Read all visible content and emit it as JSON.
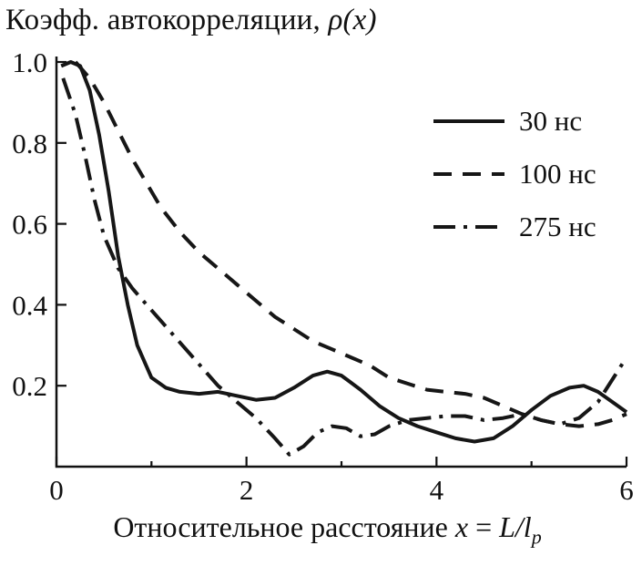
{
  "title": {
    "text": "Коэфф. автокорреляции, ",
    "math": "ρ(x)"
  },
  "xlabel": {
    "text": "Относительное расстояние ",
    "var": "x",
    "eq": " = ",
    "expr": "L/l",
    "sub": "p"
  },
  "chart_data": {
    "type": "line",
    "title": "Коэфф. автокорреляции, ρ(x)",
    "xlabel": "Относительное расстояние x = L/l_p",
    "ylabel": "",
    "xlim": [
      0,
      6
    ],
    "ylim": [
      0,
      1.0
    ],
    "grid": false,
    "legend_position": "top-right",
    "xticks": [
      {
        "v": 0,
        "label": "0"
      },
      {
        "v": 2,
        "label": "2"
      },
      {
        "v": 4,
        "label": "4"
      },
      {
        "v": 6,
        "label": "6"
      }
    ],
    "x_minor_ticks": [
      1,
      3,
      5
    ],
    "yticks": [
      {
        "v": 0.2,
        "label": "0.2"
      },
      {
        "v": 0.4,
        "label": "0.4"
      },
      {
        "v": 0.6,
        "label": "0.6"
      },
      {
        "v": 0.8,
        "label": "0.8"
      },
      {
        "v": 1.0,
        "label": "1.0"
      }
    ],
    "line_color": "#161616",
    "series": [
      {
        "name": "30 нс",
        "style": "solid",
        "x": [
          0.05,
          0.15,
          0.25,
          0.35,
          0.45,
          0.55,
          0.65,
          0.75,
          0.85,
          1.0,
          1.15,
          1.3,
          1.5,
          1.7,
          1.9,
          2.1,
          2.3,
          2.5,
          2.7,
          2.85,
          3.0,
          3.2,
          3.4,
          3.6,
          3.8,
          4.0,
          4.2,
          4.4,
          4.6,
          4.8,
          5.0,
          5.2,
          5.4,
          5.55,
          5.7,
          5.85,
          6.0
        ],
        "y": [
          0.99,
          1.0,
          0.99,
          0.93,
          0.82,
          0.68,
          0.52,
          0.4,
          0.3,
          0.22,
          0.195,
          0.185,
          0.18,
          0.185,
          0.175,
          0.165,
          0.17,
          0.195,
          0.225,
          0.235,
          0.225,
          0.19,
          0.15,
          0.12,
          0.1,
          0.085,
          0.07,
          0.062,
          0.07,
          0.1,
          0.14,
          0.175,
          0.195,
          0.2,
          0.185,
          0.16,
          0.135
        ]
      },
      {
        "name": "100 нс",
        "style": "dashed",
        "x": [
          0.2,
          0.35,
          0.5,
          0.65,
          0.8,
          0.95,
          1.1,
          1.3,
          1.5,
          1.7,
          1.9,
          2.1,
          2.3,
          2.5,
          2.7,
          2.9,
          3.1,
          3.3,
          3.5,
          3.7,
          3.9,
          4.1,
          4.3,
          4.5,
          4.7,
          4.9,
          5.1,
          5.3,
          5.5,
          5.7,
          5.85,
          6.0
        ],
        "y": [
          1.0,
          0.96,
          0.9,
          0.83,
          0.76,
          0.7,
          0.64,
          0.58,
          0.53,
          0.49,
          0.45,
          0.41,
          0.37,
          0.34,
          0.31,
          0.29,
          0.27,
          0.25,
          0.22,
          0.205,
          0.19,
          0.185,
          0.18,
          0.17,
          0.15,
          0.13,
          0.115,
          0.105,
          0.1,
          0.105,
          0.115,
          0.13
        ]
      },
      {
        "name": "275 нс",
        "style": "dashdot",
        "x": [
          0.07,
          0.2,
          0.3,
          0.4,
          0.5,
          0.65,
          0.8,
          0.95,
          1.1,
          1.25,
          1.4,
          1.55,
          1.7,
          1.9,
          2.1,
          2.3,
          2.45,
          2.6,
          2.75,
          2.9,
          3.05,
          3.2,
          3.35,
          3.5,
          3.7,
          3.9,
          4.1,
          4.3,
          4.5,
          4.7,
          4.9,
          5.1,
          5.3,
          5.5,
          5.7,
          5.85,
          6.0
        ],
        "y": [
          0.96,
          0.87,
          0.77,
          0.66,
          0.57,
          0.49,
          0.44,
          0.4,
          0.36,
          0.32,
          0.28,
          0.24,
          0.2,
          0.16,
          0.12,
          0.07,
          0.03,
          0.05,
          0.085,
          0.1,
          0.095,
          0.075,
          0.08,
          0.1,
          0.115,
          0.12,
          0.125,
          0.125,
          0.115,
          0.12,
          0.13,
          0.115,
          0.105,
          0.12,
          0.16,
          0.215,
          0.27
        ]
      }
    ]
  }
}
